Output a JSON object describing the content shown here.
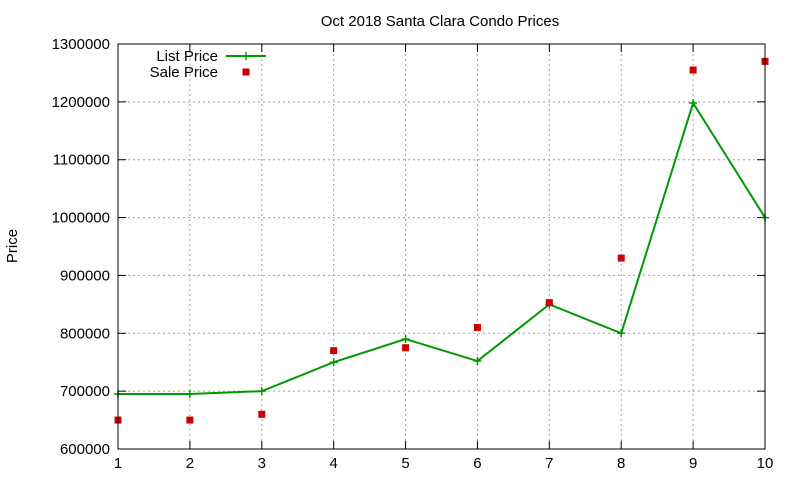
{
  "chart_data": {
    "type": "line",
    "title": "Oct 2018 Santa Clara Condo Prices",
    "xlabel": "",
    "ylabel": "Price",
    "x": [
      1,
      2,
      3,
      4,
      5,
      6,
      7,
      8,
      9,
      10
    ],
    "xlim": [
      1,
      10
    ],
    "ylim": [
      600000,
      1300000
    ],
    "x_ticks": [
      "1",
      "2",
      "3",
      "4",
      "5",
      "6",
      "7",
      "8",
      "9",
      "10"
    ],
    "y_ticks": [
      "600000",
      "700000",
      "800000",
      "900000",
      "1000000",
      "1100000",
      "1200000",
      "1300000"
    ],
    "grid": true,
    "legend_position": "top-left",
    "series": [
      {
        "name": "List Price",
        "style": "linespoints",
        "marker": "plus",
        "color": "#009900",
        "values": [
          695000,
          695000,
          700000,
          750000,
          790000,
          752000,
          850000,
          800000,
          1198000,
          1000000
        ]
      },
      {
        "name": "Sale Price",
        "style": "points",
        "marker": "square",
        "color": "#cc0000",
        "values": [
          650000,
          650000,
          660000,
          770000,
          775000,
          810000,
          853000,
          930000,
          1255000,
          1270000
        ]
      }
    ]
  }
}
